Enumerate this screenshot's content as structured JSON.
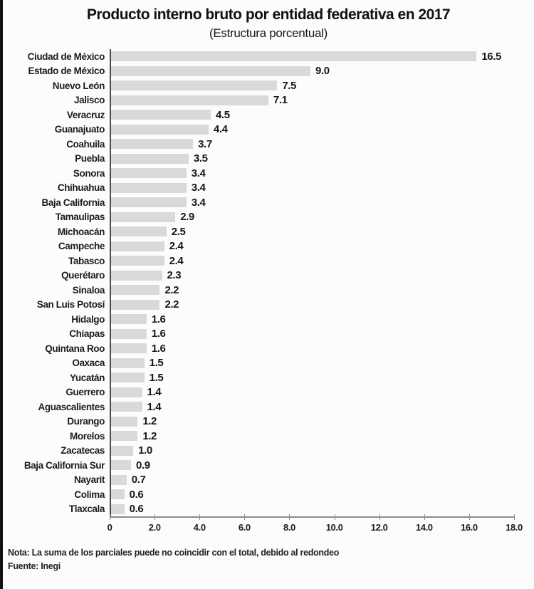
{
  "header": {
    "title": "Producto interno bruto por entidad federativa en 2017",
    "subtitle": "(Estructura porcentual)"
  },
  "chart_data": {
    "type": "bar",
    "orientation": "horizontal",
    "title": "Producto interno bruto por entidad federativa en 2017",
    "subtitle": "(Estructura porcentual)",
    "xlabel": "",
    "ylabel": "",
    "xlim": [
      0,
      18
    ],
    "xtick_values": [
      0,
      2,
      4,
      6,
      8,
      10,
      12,
      14,
      16,
      18
    ],
    "xtick_labels": [
      "0",
      "2.0",
      "4.0",
      "6.0",
      "8.0",
      "10.0",
      "12.0",
      "14.0",
      "16.0",
      "18.0"
    ],
    "grid": false,
    "legend": false,
    "bar_color": "#d9d9d9",
    "categories": [
      "Ciudad de México",
      "Estado de México",
      "Nuevo León",
      "Jalisco",
      "Veracruz",
      "Guanajuato",
      "Coahuila",
      "Puebla",
      "Sonora",
      "Chihuahua",
      "Baja California",
      "Tamaulipas",
      "Michoacán",
      "Campeche",
      "Tabasco",
      "Querétaro",
      "Sinaloa",
      "San Luis Potosí",
      "Hidalgo",
      "Chiapas",
      "Quintana Roo",
      "Oaxaca",
      "Yucatán",
      "Guerrero",
      "Aguascalientes",
      "Durango",
      "Morelos",
      "Zacatecas",
      "Baja California Sur",
      "Nayarit",
      "Colima",
      "Tlaxcala"
    ],
    "values": [
      16.5,
      9.0,
      7.5,
      7.1,
      4.5,
      4.4,
      3.7,
      3.5,
      3.4,
      3.4,
      3.4,
      2.9,
      2.5,
      2.4,
      2.4,
      2.3,
      2.2,
      2.2,
      1.6,
      1.6,
      1.6,
      1.5,
      1.5,
      1.4,
      1.4,
      1.2,
      1.2,
      1.0,
      0.9,
      0.7,
      0.6,
      0.6
    ]
  },
  "footer": {
    "nota": "Nota: La suma de los parciales puede no coincidir con el total, debido al redondeo",
    "fuente": "Fuente: Inegi"
  }
}
